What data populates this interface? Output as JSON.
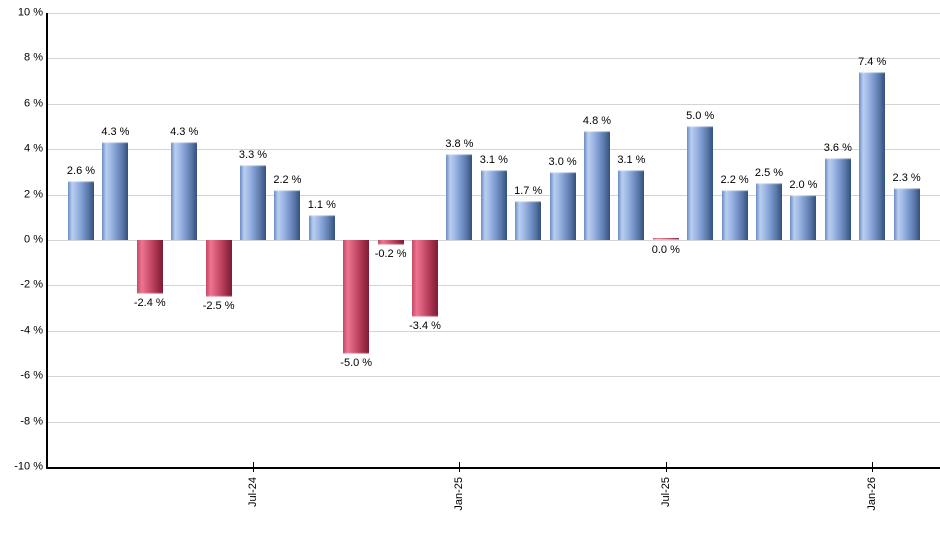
{
  "chart_data": {
    "type": "bar",
    "title": "",
    "grid": true,
    "legend": "none",
    "background": "#ffffff",
    "ylim": [
      -10,
      10
    ],
    "values": [
      2.6,
      4.3,
      -2.4,
      4.3,
      -2.5,
      3.3,
      2.2,
      1.1,
      -5.0,
      -0.2,
      -3.4,
      3.8,
      3.1,
      1.7,
      3.0,
      4.8,
      3.1,
      0.0,
      5.0,
      2.2,
      2.5,
      2.0,
      3.6,
      7.4,
      2.3
    ],
    "value_labels": [
      "2.6 %",
      "4.3 %",
      "-2.4 %",
      "4.3 %",
      "-2.5 %",
      "3.3 %",
      "2.2 %",
      "1.1 %",
      "-5.0 %",
      "-0.2 %",
      "-3.4 %",
      "3.8 %",
      "3.1 %",
      "1.7 %",
      "3.0 %",
      "4.8 %",
      "3.1 %",
      "0.0 %",
      "5.0 %",
      "2.2 %",
      "2.5 %",
      "2.0 %",
      "3.6 %",
      "7.4 %",
      "2.3 %"
    ],
    "x_ticks": [
      {
        "label": "Jul-24",
        "bar_index": 5
      },
      {
        "label": "Jan-25",
        "bar_index": 11
      },
      {
        "label": "Jul-25",
        "bar_index": 17
      },
      {
        "label": "Jan-26",
        "bar_index": 23
      }
    ],
    "y_ticks": [
      {
        "label": "10 %",
        "value": 10
      },
      {
        "label": "8 %",
        "value": 8
      },
      {
        "label": "6 %",
        "value": 6
      },
      {
        "label": "4 %",
        "value": 4
      },
      {
        "label": "2 %",
        "value": 2
      },
      {
        "label": "0 %",
        "value": 0
      },
      {
        "label": "-2 %",
        "value": -2
      },
      {
        "label": "-4 %",
        "value": -4
      },
      {
        "label": "-6 %",
        "value": -6
      },
      {
        "label": "-8 %",
        "value": -8
      },
      {
        "label": "-10 %",
        "value": -10
      }
    ],
    "colors": {
      "positive_bar_light": "#b9cef0",
      "positive_bar_dark": "#33507e",
      "negative_bar_light": "#ee7490",
      "negative_bar_dark": "#7e1c35",
      "gridline": "#d4d4d4",
      "axis": "#000000",
      "label_text": "#000000"
    }
  }
}
